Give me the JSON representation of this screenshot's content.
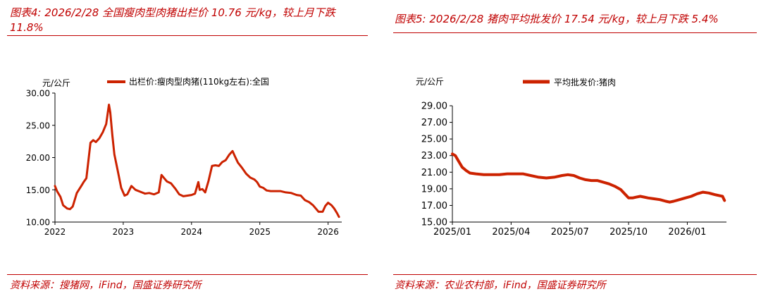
{
  "left": {
    "title": "图表4:  2026/2/28  全国瘦肉型肉猪出栏价  10.76  元/kg，较上月下跌 11.8%",
    "source": "资料来源：搜猪网，iFind，国盛证券研究所"
  },
  "right": {
    "title": "图表5:  2026/2/28 猪肉平均批发价 17.54 元/kg，较上月下跌 5.4%",
    "source": "资料来源：农业农村部，iFind，国盛证券研究所"
  },
  "colors": {
    "accent": "#c00000",
    "line": "#cc2200"
  },
  "chart_data": [
    {
      "type": "line",
      "unit_label": "元/公斤",
      "legend": "出栏价:瘦肉型肉猪(110kg左右):全国",
      "legend_position": "top",
      "x_tick_labels": [
        "2022",
        "2023",
        "2024",
        "2025",
        "2026"
      ],
      "y_tick_labels": [
        "10.00",
        "15.00",
        "20.00",
        "25.00",
        "30.00"
      ],
      "ylim": [
        10,
        30
      ],
      "xlim": [
        2022.0,
        2026.2
      ],
      "series": [
        {
          "name": "出栏价:瘦肉型肉猪(110kg左右):全国",
          "x": [
            2022.0,
            2022.03,
            2022.08,
            2022.12,
            2022.18,
            2022.22,
            2022.26,
            2022.32,
            2022.38,
            2022.42,
            2022.46,
            2022.52,
            2022.56,
            2022.6,
            2022.65,
            2022.7,
            2022.75,
            2022.79,
            2022.81,
            2022.84,
            2022.87,
            2022.92,
            2022.97,
            2023.02,
            2023.06,
            2023.12,
            2023.18,
            2023.25,
            2023.32,
            2023.38,
            2023.45,
            2023.52,
            2023.56,
            2023.6,
            2023.64,
            2023.7,
            2023.76,
            2023.82,
            2023.88,
            2023.94,
            2024.0,
            2024.05,
            2024.1,
            2024.12,
            2024.16,
            2024.2,
            2024.25,
            2024.3,
            2024.35,
            2024.4,
            2024.45,
            2024.5,
            2024.55,
            2024.6,
            2024.64,
            2024.68,
            2024.74,
            2024.8,
            2024.86,
            2024.92,
            2024.96,
            2025.0,
            2025.05,
            2025.1,
            2025.16,
            2025.22,
            2025.3,
            2025.38,
            2025.46,
            2025.54,
            2025.6,
            2025.66,
            2025.72,
            2025.78,
            2025.82,
            2025.86,
            2025.92,
            2025.96,
            2026.0,
            2026.05,
            2026.09,
            2026.13,
            2026.16
          ],
          "values": [
            15.6,
            14.8,
            13.9,
            12.6,
            12.1,
            12.0,
            12.4,
            14.5,
            15.5,
            16.2,
            16.8,
            22.3,
            22.7,
            22.4,
            23.0,
            23.9,
            25.2,
            28.2,
            27.0,
            23.5,
            20.5,
            17.9,
            15.3,
            14.1,
            14.3,
            15.6,
            15.0,
            14.7,
            14.4,
            14.5,
            14.3,
            14.6,
            17.3,
            16.8,
            16.3,
            16.0,
            15.2,
            14.3,
            14.0,
            14.1,
            14.2,
            14.4,
            16.2,
            15.0,
            15.1,
            14.6,
            16.4,
            18.7,
            18.8,
            18.7,
            19.3,
            19.6,
            20.4,
            21.0,
            20.1,
            19.2,
            18.4,
            17.5,
            16.9,
            16.6,
            16.2,
            15.5,
            15.3,
            14.9,
            14.8,
            14.8,
            14.8,
            14.6,
            14.5,
            14.2,
            14.1,
            13.4,
            13.1,
            12.6,
            12.1,
            11.6,
            11.6,
            12.5,
            13.0,
            12.6,
            12.1,
            11.4,
            10.8
          ]
        }
      ]
    },
    {
      "type": "line",
      "unit_label": "元/公斤",
      "legend": "平均批发价:猪肉",
      "legend_position": "top",
      "x_tick_labels": [
        "2025/01",
        "2025/04",
        "2025/07",
        "2025/10",
        "2026/01"
      ],
      "y_tick_labels": [
        "15.00",
        "17.00",
        "19.00",
        "21.00",
        "23.00",
        "25.00",
        "27.00",
        "29.00"
      ],
      "ylim": [
        15,
        29
      ],
      "xlim": [
        0,
        14.0
      ],
      "series": [
        {
          "name": "平均批发价:猪肉",
          "x": [
            0.0,
            0.15,
            0.3,
            0.5,
            0.7,
            0.9,
            1.2,
            1.6,
            2.0,
            2.4,
            2.8,
            3.2,
            3.6,
            4.0,
            4.4,
            4.8,
            5.2,
            5.6,
            5.9,
            6.2,
            6.5,
            6.8,
            7.1,
            7.4,
            7.7,
            8.0,
            8.3,
            8.6,
            8.8,
            9.0,
            9.2,
            9.4,
            9.6,
            9.8,
            10.0,
            10.3,
            10.6,
            10.9,
            11.1,
            11.3,
            11.6,
            11.9,
            12.2,
            12.5,
            12.8,
            13.1,
            13.4,
            13.6,
            13.8,
            13.9
          ],
          "values": [
            23.2,
            23.0,
            22.4,
            21.6,
            21.2,
            20.9,
            20.8,
            20.7,
            20.7,
            20.7,
            20.8,
            20.8,
            20.8,
            20.6,
            20.4,
            20.3,
            20.4,
            20.6,
            20.7,
            20.6,
            20.3,
            20.1,
            20.0,
            20.0,
            19.8,
            19.6,
            19.3,
            18.9,
            18.4,
            17.9,
            17.9,
            18.0,
            18.1,
            18.0,
            17.9,
            17.8,
            17.7,
            17.5,
            17.4,
            17.5,
            17.7,
            17.9,
            18.1,
            18.4,
            18.6,
            18.5,
            18.3,
            18.2,
            18.1,
            17.6
          ]
        }
      ]
    }
  ]
}
